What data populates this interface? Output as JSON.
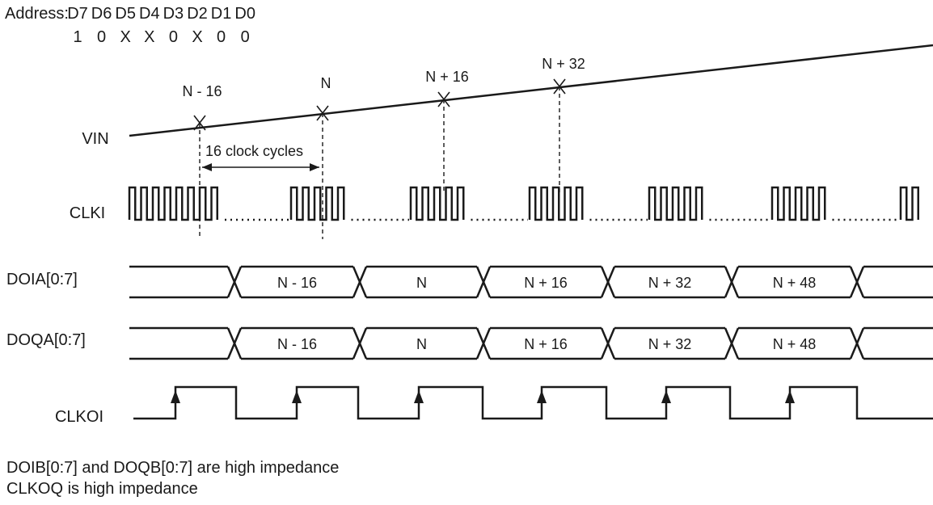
{
  "address": {
    "label": "Address:",
    "bits": [
      {
        "name": "D7",
        "value": "1"
      },
      {
        "name": "D6",
        "value": "0"
      },
      {
        "name": "D5",
        "value": "X"
      },
      {
        "name": "D4",
        "value": "X"
      },
      {
        "name": "D3",
        "value": "0"
      },
      {
        "name": "D2",
        "value": "X"
      },
      {
        "name": "D1",
        "value": "0"
      },
      {
        "name": "D0",
        "value": "0"
      }
    ]
  },
  "signals": {
    "vin": "VIN",
    "clki": "CLKI",
    "doia": "DOIA[0:7]",
    "doqa": "DOQA[0:7]",
    "clkoi": "CLKOI"
  },
  "samples": [
    "N - 16",
    "N",
    "N + 16",
    "N + 32"
  ],
  "interval_label": "16 clock cycles",
  "doia_values": [
    "N - 16",
    "N",
    "N + 16",
    "N + 32",
    "N + 48"
  ],
  "doqa_values": [
    "N - 16",
    "N",
    "N + 16",
    "N + 32",
    "N + 48"
  ],
  "notes": [
    "DOIB[0:7] and DOQB[0:7] are high impedance",
    "CLKOQ is high impedance"
  ]
}
